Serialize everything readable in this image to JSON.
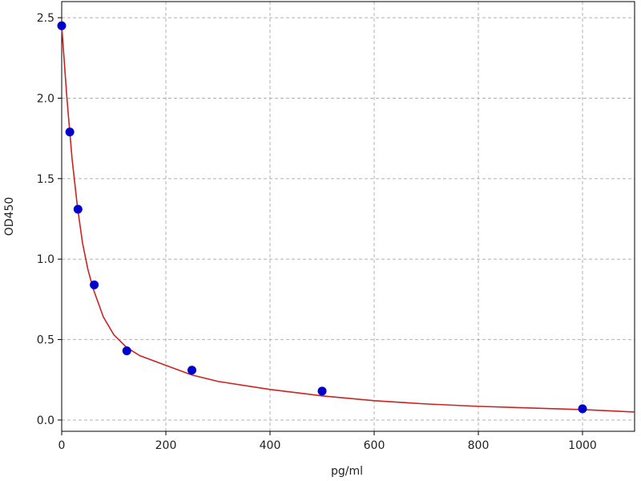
{
  "chart_data": {
    "type": "scatter",
    "x_label": "pg/ml",
    "y_label": "OD450",
    "series": [
      {
        "type": "scatter",
        "color": "#0000cc",
        "x": [
          0,
          15.6,
          31.25,
          62.5,
          125,
          250,
          500,
          1000
        ],
        "values": [
          2.45,
          1.79,
          1.31,
          0.84,
          0.43,
          0.31,
          0.18,
          0.07
        ]
      },
      {
        "type": "line",
        "color": "#cc2222",
        "x": [
          0,
          10,
          20,
          30,
          40,
          50,
          60,
          80,
          100,
          125,
          150,
          200,
          250,
          300,
          400,
          500,
          600,
          700,
          800,
          900,
          1000,
          1100
        ],
        "values": [
          2.45,
          2.0,
          1.62,
          1.33,
          1.1,
          0.94,
          0.82,
          0.64,
          0.53,
          0.45,
          0.4,
          0.34,
          0.28,
          0.24,
          0.19,
          0.15,
          0.12,
          0.1,
          0.085,
          0.075,
          0.065,
          0.05
        ]
      }
    ],
    "xlim": [
      0,
      1100
    ],
    "ylim": [
      -0.07,
      2.6
    ],
    "xticks": [
      0,
      200,
      400,
      600,
      800,
      1000
    ],
    "yticks": [
      {
        "value": 0,
        "label": "0.0"
      },
      0.5,
      {
        "value": 1,
        "label": "1.0"
      },
      1.5,
      {
        "value": 2,
        "label": "2.0"
      },
      2.5
    ],
    "grid": true
  }
}
